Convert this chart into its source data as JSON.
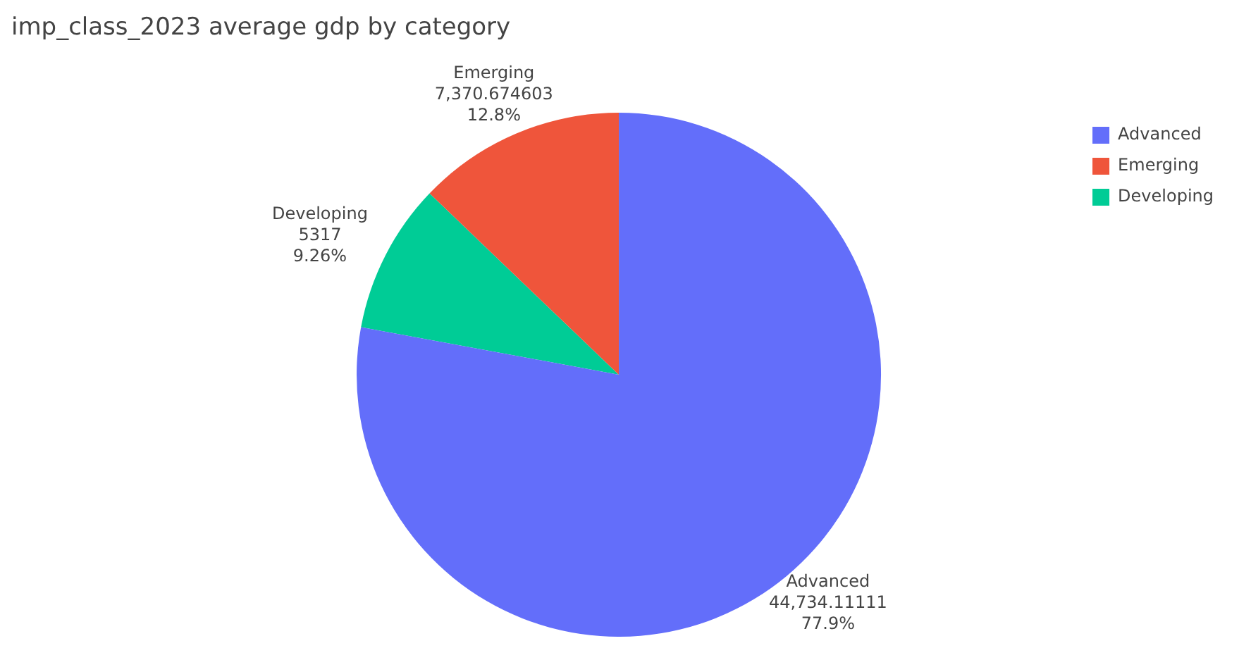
{
  "chart_data": {
    "type": "pie",
    "title": "imp_class_2023 average gdp by category",
    "categories": [
      "Advanced",
      "Emerging",
      "Developing"
    ],
    "values": [
      44734.11111,
      7370.674603,
      5317
    ],
    "value_labels": [
      "44,734.11111\n77.9%",
      "7,370.674603\n12.8%",
      "5317\n9.26%"
    ],
    "colors": [
      "#636efa",
      "#ef553b",
      "#00cc96"
    ],
    "legend": "top right"
  }
}
